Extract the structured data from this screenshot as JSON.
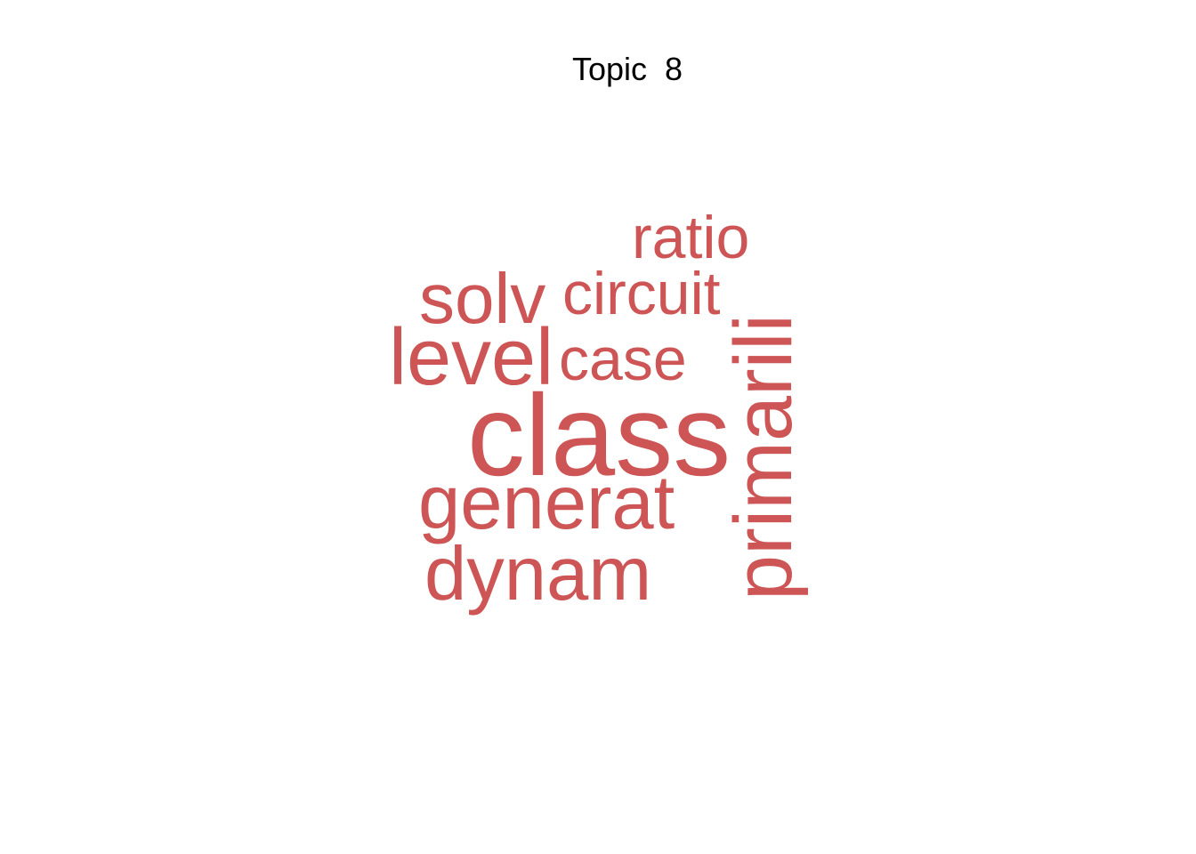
{
  "title": "Topic  8",
  "word_color": "#cd5555",
  "title_color": "#000000",
  "words": {
    "class": "class",
    "primarili": "primarili",
    "level": "level",
    "generat": "generat",
    "dynam": "dynam",
    "solv": "solv",
    "circuit": "circuit",
    "ratio": "ratio",
    "case": "case"
  }
}
